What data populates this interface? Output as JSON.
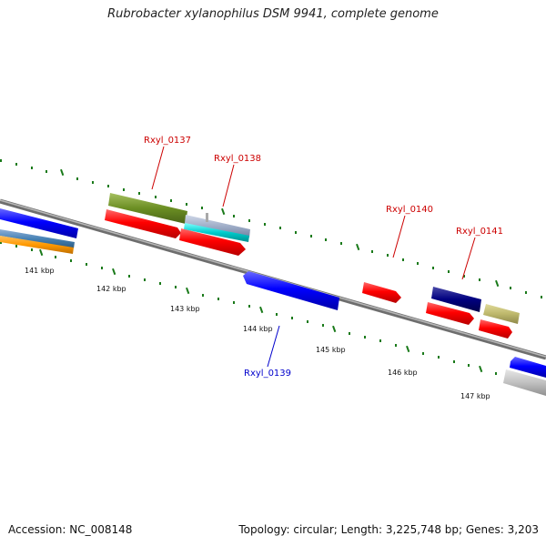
{
  "title": "Rubrobacter xylanophilus DSM 9941, complete genome",
  "footer": {
    "accession": "Accession: NC_008148",
    "summary": "Topology: circular; Length: 3,225,748 bp; Genes: 3,203"
  },
  "gene_labels": {
    "g137": "Rxyl_0137",
    "g138": "Rxyl_0138",
    "g139": "Rxyl_0139",
    "g140": "Rxyl_0140",
    "g141": "Rxyl_0141"
  },
  "kbp_labels": {
    "k141": "141 kbp",
    "k142": "142 kbp",
    "k143": "143 kbp",
    "k144": "144 kbp",
    "k145": "145 kbp",
    "k146": "146 kbp",
    "k147": "147 kbp"
  },
  "colors": {
    "backbone": "#808080",
    "tick_green": "#1a7a1a",
    "forward_gene": "#ff0000",
    "reverse_gene": "#0000ff",
    "label_forward": "#cc0000",
    "label_reverse": "#0000cc"
  }
}
